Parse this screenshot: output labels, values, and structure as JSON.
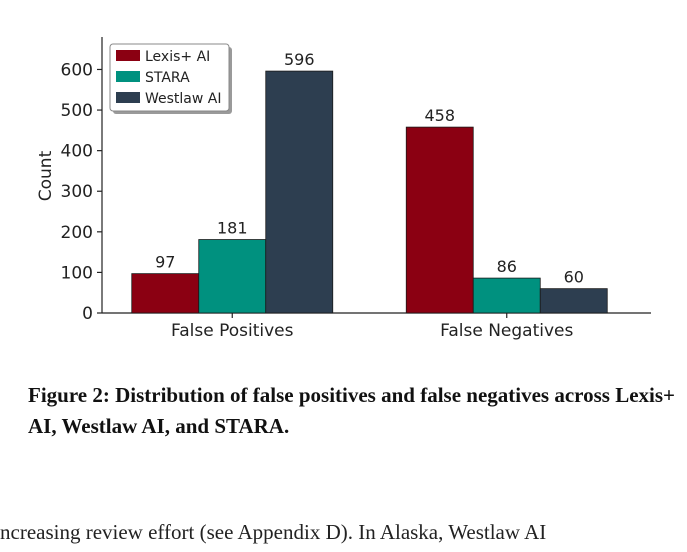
{
  "chart_data": {
    "type": "bar",
    "categories": [
      "False Positives",
      "False Negatives"
    ],
    "series": [
      {
        "name": "Lexis+ AI",
        "values": [
          97,
          458
        ],
        "color": "#8b0012"
      },
      {
        "name": "STARA",
        "values": [
          181,
          86
        ],
        "color": "#00917f"
      },
      {
        "name": "Westlaw AI",
        "values": [
          596,
          60
        ],
        "color": "#2d3e50"
      }
    ],
    "title": "",
    "xlabel": "",
    "ylabel": "Count",
    "ylim": [
      0,
      680
    ],
    "yticks": [
      0,
      100,
      200,
      300,
      400,
      500,
      600
    ],
    "grid": false,
    "legend_position": "top-left"
  },
  "caption": "Figure 2: Distribution of false positives and false negatives across Lexis+ AI, Westlaw AI, and STARA.",
  "body_text": "ncreasing review effort (see Appendix D). In Alaska, Westlaw AI"
}
